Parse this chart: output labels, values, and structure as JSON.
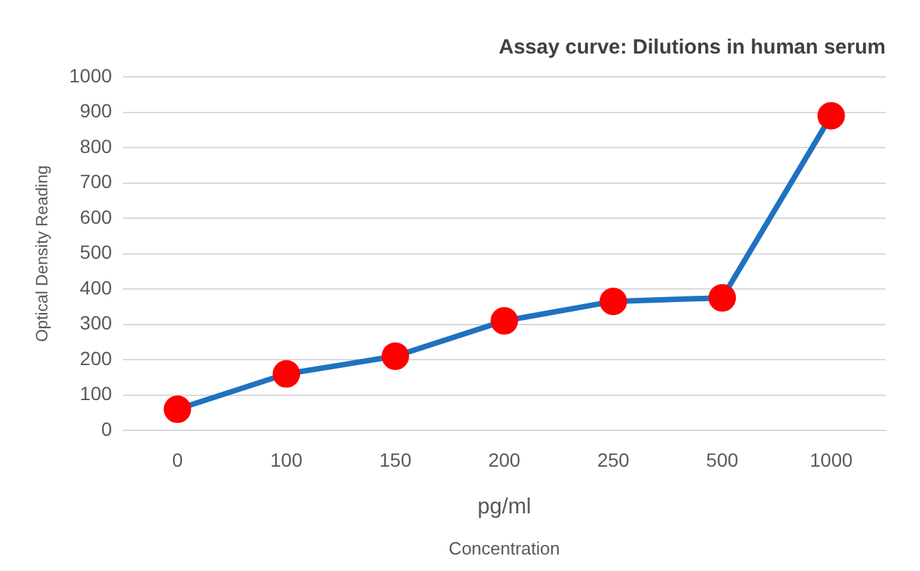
{
  "chart_data": {
    "type": "line",
    "title": "Assay curve: Dilutions in human serum",
    "xlabel": "Concentration",
    "ylabel": "Optical Density Reading",
    "annotations": [
      "pg/ml"
    ],
    "categories": [
      "0",
      "100",
      "150",
      "200",
      "250",
      "500",
      "1000"
    ],
    "series": [
      {
        "color": "#1f72c0",
        "values": [
          60,
          160,
          210,
          310,
          365,
          375,
          890
        ]
      }
    ],
    "marker": "circle",
    "ylim": [
      0,
      1000
    ],
    "yticks": [
      0,
      100,
      200,
      300,
      400,
      500,
      600,
      700,
      800,
      900,
      1000
    ],
    "grid": "y",
    "legend": false
  }
}
